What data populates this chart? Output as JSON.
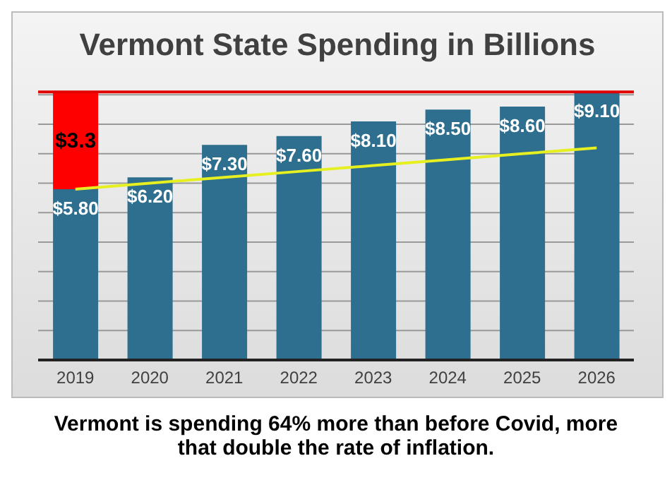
{
  "chart_data": {
    "type": "bar",
    "title": "Vermont State Spending in Billions",
    "categories": [
      "2019",
      "2020",
      "2021",
      "2022",
      "2023",
      "2024",
      "2025",
      "2026"
    ],
    "series": [
      {
        "color": "#2e6e8e",
        "values": [
          5.8,
          6.2,
          7.3,
          7.6,
          8.1,
          8.5,
          8.6,
          9.1
        ],
        "value_labels": [
          "$5.80",
          "$6.20",
          "$7.30",
          "$7.60",
          "$8.10",
          "$8.50",
          "$8.60",
          "$9.10"
        ]
      },
      {
        "color": "#ff0000",
        "values": [
          3.3,
          null,
          null,
          null,
          null,
          null,
          null,
          null
        ],
        "value_labels": [
          "$3.3",
          null,
          null,
          null,
          null,
          null,
          null,
          null
        ]
      },
      {
        "type": "line",
        "color": "#e6f020",
        "values": [
          5.8,
          6.0,
          6.2,
          6.4,
          6.6,
          6.8,
          7.0,
          7.2
        ]
      }
    ],
    "stacked": true,
    "ylim": [
      0,
      9.2
    ],
    "yticks": [
      {
        "value": 0,
        "label": null
      },
      {
        "value": 1,
        "label": null
      },
      {
        "value": 2,
        "label": null
      },
      {
        "value": 3,
        "label": null
      },
      {
        "value": 4,
        "label": null
      },
      {
        "value": 5,
        "label": null
      },
      {
        "value": 6,
        "label": null
      },
      {
        "value": 7,
        "label": null
      },
      {
        "value": 8,
        "label": null
      },
      {
        "value": 9,
        "label": null
      }
    ],
    "tick_labels": "x",
    "grid": "y",
    "legend": false,
    "marker": "none",
    "ref_lines": [
      {
        "axis": "y",
        "value": 9.1,
        "label": null,
        "color": "#e00000"
      }
    ],
    "annotations": [
      "Vermont is spending 64% more than before Covid, more that double the rate of inflation."
    ]
  }
}
